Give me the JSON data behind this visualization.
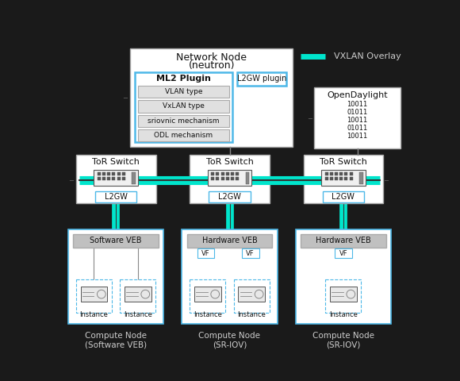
{
  "bg_color": "#1a1a1a",
  "box_face": "#ffffff",
  "box_edge_blue": "#4db8e8",
  "box_edge_gray": "#888888",
  "cyan_color": "#00e5cc",
  "gray_veb": "#c0c0c0",
  "lgray_item": "#e0e0e0",
  "text_dark": "#111111",
  "text_gray": "#555555",
  "legend_label": "VXLAN Overlay",
  "ml2_items": [
    "VLAN type",
    "VxLAN type",
    "sriovnic mechanism",
    "ODL mechanism"
  ],
  "code_lines": [
    "10011",
    "01011",
    "10011",
    "01011",
    "10011"
  ],
  "tor_labels": [
    "ToR Switch",
    "ToR Switch",
    "ToR Switch"
  ],
  "compute_labels": [
    "Compute Node\n(Software VEB)",
    "Compute Node\n(SR-IOV)",
    "Compute Node\n(SR-IOV)"
  ],
  "veb_labels": [
    "Software VEB",
    "Hardware VEB",
    "Hardware VEB"
  ],
  "vf_counts": [
    0,
    2,
    1
  ],
  "inst_counts": [
    2,
    2,
    1
  ]
}
